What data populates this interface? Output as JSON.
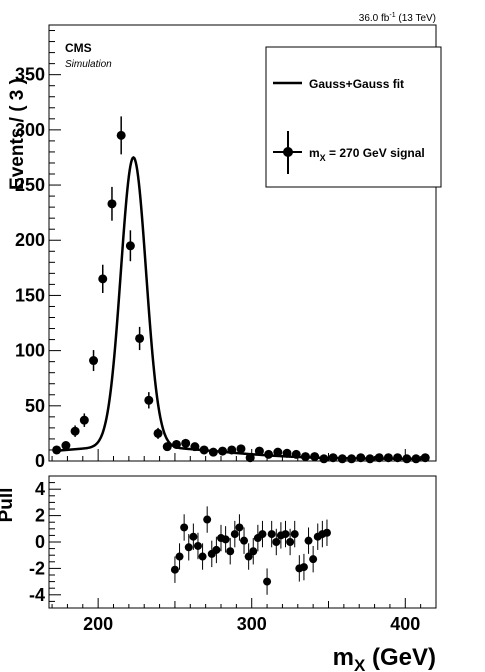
{
  "chart_data": [
    {
      "type": "scatter",
      "panel": "main",
      "lumi_label": "36.0 fb",
      "lumi_exp": "-1",
      "lumi_energy": " (13 TeV)",
      "cms_label": "CMS",
      "sim_label": "Simulation",
      "ylabel": "Events / ( 3 )",
      "xlim": [
        168,
        420
      ],
      "ylim": [
        0,
        395
      ],
      "x_ticks": [
        200,
        300,
        400
      ],
      "y_ticks": [
        0,
        50,
        100,
        150,
        200,
        250,
        300,
        350
      ],
      "legend_position": "top-right",
      "legend": [
        {
          "label": "Gauss+Gauss fit",
          "style": "line"
        },
        {
          "label_main": "m",
          "label_sub": "X",
          "label_rest": " = 270 GeV signal",
          "style": "marker"
        }
      ],
      "series": [
        {
          "name": "Gauss+Gauss fit",
          "style": "line",
          "fit": {
            "peak_mean": 223,
            "peak_sigma": 8.2,
            "peak_amp": 262,
            "tail_amp": 11,
            "tail_sigma": 55,
            "baseline": 2
          }
        },
        {
          "name": "m_X = 270 GeV signal",
          "style": "points",
          "xerr": 1.5,
          "x": [
            173,
            179,
            185,
            191,
            197,
            203,
            209,
            215,
            221,
            227,
            233,
            239,
            245,
            251,
            257,
            263,
            269,
            275,
            281,
            287,
            293,
            299,
            305,
            311,
            317,
            323,
            329,
            335,
            341,
            347,
            353,
            359,
            365,
            371,
            377,
            383,
            389,
            395,
            401,
            407,
            413
          ],
          "y": [
            10,
            14,
            27,
            37,
            91,
            165,
            233,
            295,
            195,
            111,
            55,
            25,
            13,
            15,
            16,
            13,
            10,
            8,
            9,
            10,
            11,
            3,
            9,
            6,
            8,
            7,
            6,
            4,
            4,
            2,
            3,
            2,
            2,
            3,
            2,
            3,
            3,
            3,
            2,
            2,
            3
          ],
          "yerr": [
            3.2,
            3.7,
            5.2,
            6.1,
            9.5,
            12.8,
            15.3,
            17.2,
            14,
            10.5,
            7.4,
            5,
            3.6,
            3.9,
            4,
            3.6,
            3.2,
            2.8,
            3,
            3.2,
            3.3,
            1.7,
            3,
            2.4,
            2.8,
            2.6,
            2.4,
            2,
            2,
            1.4,
            1.7,
            1.4,
            1.4,
            1.7,
            1.4,
            1.7,
            1.7,
            1.7,
            1.4,
            1.4,
            1.7
          ]
        }
      ]
    },
    {
      "type": "scatter",
      "panel": "pull",
      "ylabel": "Pull",
      "xlabel_main": "m",
      "xlabel_sub": "X",
      "xlabel_rest": " (GeV)",
      "xlim": [
        168,
        420
      ],
      "ylim": [
        -5,
        5
      ],
      "x_ticks": [
        200,
        300,
        400
      ],
      "y_ticks": [
        -4,
        -2,
        0,
        2,
        4
      ],
      "series": [
        {
          "name": "Pull",
          "x": [
            250,
            253,
            256,
            259,
            262,
            265,
            268,
            271,
            274,
            277,
            280,
            283,
            286,
            289,
            292,
            295,
            298,
            301,
            304,
            307,
            310,
            313,
            316,
            319,
            322,
            325,
            328,
            331,
            334,
            337,
            340,
            343,
            346,
            349
          ],
          "y": [
            -2.1,
            -1.1,
            1.1,
            -0.4,
            0.4,
            -0.3,
            -1.1,
            1.7,
            -0.9,
            -0.6,
            0.3,
            0.2,
            -0.7,
            0.6,
            1.1,
            0.1,
            -1.1,
            -0.7,
            0.3,
            0.6,
            -3.0,
            0.6,
            0.0,
            0.5,
            0.6,
            0.0,
            0.6,
            -2.0,
            -1.9,
            0.1,
            -1.3,
            0.4,
            0.6,
            0.7
          ],
          "yerr": [
            1
          ]
        }
      ]
    }
  ]
}
